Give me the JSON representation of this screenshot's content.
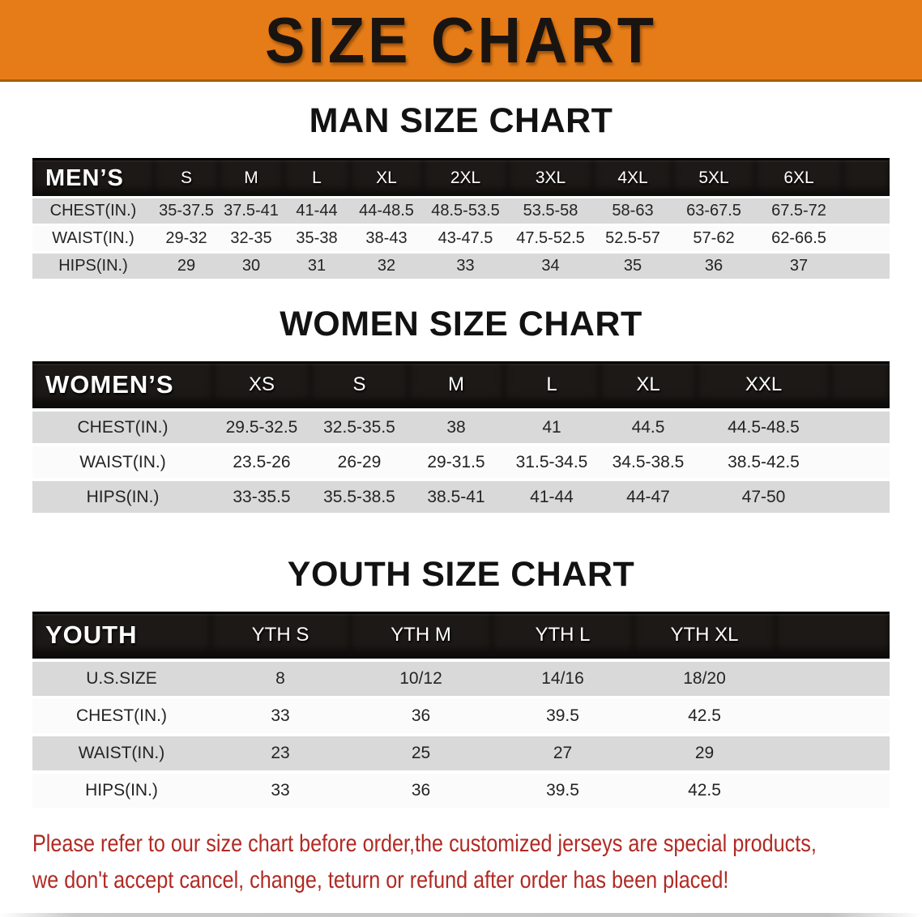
{
  "banner": {
    "title": "SIZE CHART"
  },
  "colors": {
    "banner_orange": "#e67c18",
    "table_header_black": "#1c1916",
    "row_gray": "#d9d9d9",
    "row_white": "#fbfbfb",
    "disclaimer_red": "#b02a24"
  },
  "men": {
    "heading": "MAN SIZE CHART",
    "label": "MEN’S",
    "sizes": [
      "S",
      "M",
      "L",
      "XL",
      "2XL",
      "3XL",
      "4XL",
      "5XL",
      "6XL"
    ],
    "rows": [
      {
        "label": "CHEST(IN.)",
        "values": [
          "35-37.5",
          "37.5-41",
          "41-44",
          "44-48.5",
          "48.5-53.5",
          "53.5-58",
          "58-63",
          "63-67.5",
          "67.5-72"
        ]
      },
      {
        "label": "WAIST(IN.)",
        "values": [
          "29-32",
          "32-35",
          "35-38",
          "38-43",
          "43-47.5",
          "47.5-52.5",
          "52.5-57",
          "57-62",
          "62-66.5"
        ]
      },
      {
        "label": "HIPS(IN.)",
        "values": [
          "29",
          "30",
          "31",
          "32",
          "33",
          "34",
          "35",
          "36",
          "37"
        ]
      }
    ]
  },
  "women": {
    "heading": "WOMEN SIZE CHART",
    "label": "WOMEN’S",
    "sizes": [
      "XS",
      "S",
      "M",
      "L",
      "XL",
      "XXL"
    ],
    "rows": [
      {
        "label": "CHEST(IN.)",
        "values": [
          "29.5-32.5",
          "32.5-35.5",
          "38",
          "41",
          "44.5",
          "44.5-48.5"
        ]
      },
      {
        "label": "WAIST(IN.)",
        "values": [
          "23.5-26",
          "26-29",
          "29-31.5",
          "31.5-34.5",
          "34.5-38.5",
          "38.5-42.5"
        ]
      },
      {
        "label": "HIPS(IN.)",
        "values": [
          "33-35.5",
          "35.5-38.5",
          "38.5-41",
          "41-44",
          "44-47",
          "47-50"
        ]
      }
    ]
  },
  "youth": {
    "heading": "YOUTH SIZE CHART",
    "label": "YOUTH",
    "sizes": [
      "YTH S",
      "YTH M",
      "YTH L",
      "YTH XL"
    ],
    "rows": [
      {
        "label": "U.S.SIZE",
        "values": [
          "8",
          "10/12",
          "14/16",
          "18/20"
        ]
      },
      {
        "label": "CHEST(IN.)",
        "values": [
          "33",
          "36",
          "39.5",
          "42.5"
        ]
      },
      {
        "label": "WAIST(IN.)",
        "values": [
          "23",
          "25",
          "27",
          "29"
        ]
      },
      {
        "label": "HIPS(IN.)",
        "values": [
          "33",
          "36",
          "39.5",
          "42.5"
        ]
      }
    ]
  },
  "disclaimer": {
    "line1": "Please refer to our size chart before order,the customized jerseys are special products,",
    "line2": "we don't accept cancel, change, teturn or refund after order has been placed!"
  }
}
